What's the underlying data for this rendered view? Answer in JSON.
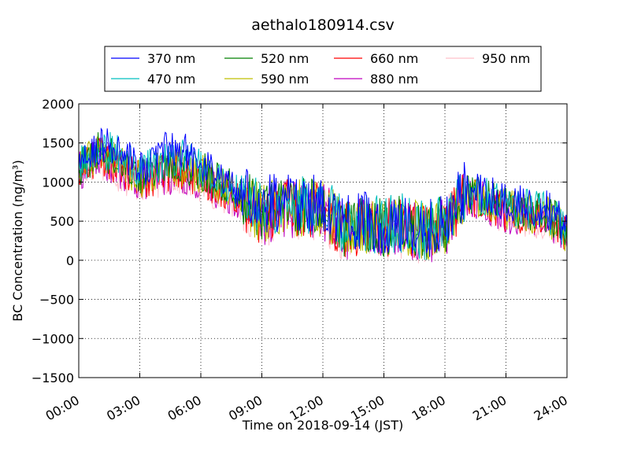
{
  "chart_data": {
    "type": "line",
    "title": "aethalo180914.csv",
    "xlabel": "Time on 2018-09-14 (JST)",
    "ylabel": "BC Concentration (ng/m³)",
    "xlim": [
      0,
      24
    ],
    "ylim": [
      -1500,
      2000
    ],
    "x_ticks": [
      0,
      3,
      6,
      9,
      12,
      15,
      18,
      21,
      24
    ],
    "x_tick_labels": [
      "00:00",
      "03:00",
      "06:00",
      "09:00",
      "12:00",
      "15:00",
      "18:00",
      "21:00",
      "24:00"
    ],
    "y_ticks": [
      -1500,
      -1000,
      -500,
      0,
      500,
      1000,
      1500,
      2000
    ],
    "y_tick_labels": [
      "−1500",
      "−1000",
      "−500",
      "0",
      "500",
      "1000",
      "1500",
      "2000"
    ],
    "grid": true,
    "legend_position": "top",
    "anchors_x": [
      0,
      1,
      2,
      3,
      4,
      5,
      6,
      7,
      8,
      9,
      10,
      11,
      12,
      13,
      14,
      15,
      16,
      17,
      18,
      19,
      20,
      21,
      22,
      23,
      24
    ],
    "series": [
      {
        "name": "370 nm",
        "color": "#0000ff",
        "values": [
          1200,
          1450,
          1400,
          1150,
          1350,
          1450,
          1250,
          1050,
          900,
          700,
          750,
          700,
          750,
          450,
          500,
          450,
          500,
          380,
          500,
          900,
          850,
          750,
          700,
          650,
          400
        ]
      },
      {
        "name": "470 nm",
        "color": "#00bfbf",
        "values": [
          1180,
          1420,
          1350,
          1100,
          1250,
          1300,
          1200,
          1000,
          850,
          650,
          700,
          700,
          700,
          450,
          480,
          450,
          480,
          370,
          480,
          880,
          820,
          700,
          650,
          620,
          380
        ]
      },
      {
        "name": "520 nm",
        "color": "#008000",
        "values": [
          1160,
          1400,
          1300,
          1080,
          1200,
          1250,
          1150,
          980,
          830,
          620,
          700,
          680,
          680,
          420,
          460,
          430,
          470,
          360,
          460,
          870,
          800,
          680,
          630,
          600,
          360
        ]
      },
      {
        "name": "590 nm",
        "color": "#bfbf00",
        "values": [
          1150,
          1380,
          1250,
          1050,
          1150,
          1200,
          1100,
          950,
          800,
          580,
          720,
          650,
          650,
          420,
          450,
          420,
          450,
          350,
          450,
          860,
          780,
          650,
          600,
          580,
          350
        ]
      },
      {
        "name": "660 nm",
        "color": "#ff0000",
        "values": [
          1140,
          1360,
          1200,
          1030,
          1100,
          1150,
          1050,
          930,
          780,
          560,
          700,
          640,
          640,
          400,
          440,
          410,
          440,
          340,
          440,
          850,
          760,
          620,
          580,
          560,
          340
        ]
      },
      {
        "name": "880 nm",
        "color": "#bf00bf",
        "values": [
          1130,
          1340,
          1150,
          1000,
          1080,
          1100,
          1000,
          900,
          760,
          540,
          680,
          620,
          620,
          380,
          420,
          390,
          420,
          320,
          420,
          840,
          740,
          600,
          560,
          540,
          320
        ]
      },
      {
        "name": "950 nm",
        "color": "#ffc0cb",
        "values": [
          1120,
          1320,
          1100,
          980,
          1050,
          1080,
          950,
          880,
          740,
          520,
          660,
          600,
          600,
          360,
          400,
          380,
          400,
          300,
          400,
          830,
          720,
          580,
          540,
          520,
          300
        ]
      }
    ]
  }
}
